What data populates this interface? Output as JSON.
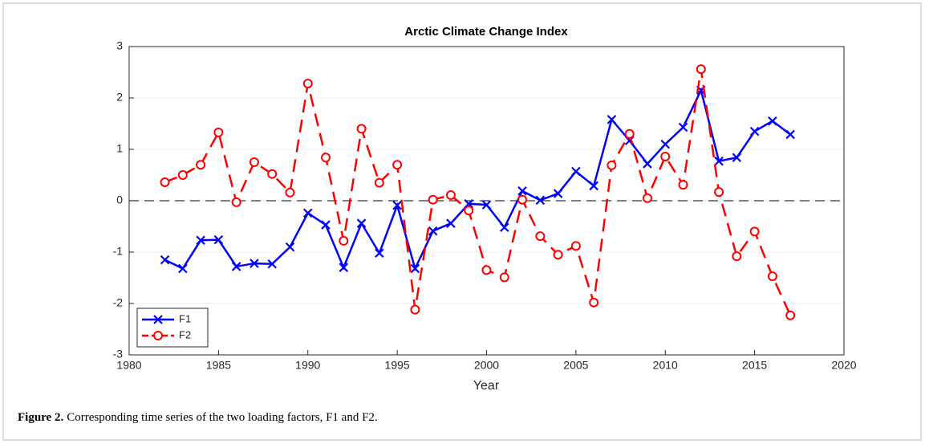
{
  "chart_data": {
    "type": "line",
    "title": "Arctic Climate Change Index",
    "x_label": "Year",
    "x": [
      1982,
      1983,
      1984,
      1985,
      1986,
      1987,
      1988,
      1989,
      1990,
      1991,
      1992,
      1993,
      1994,
      1995,
      1996,
      1997,
      1998,
      1999,
      2000,
      2001,
      2002,
      2003,
      2004,
      2005,
      2006,
      2007,
      2008,
      2009,
      2010,
      2011,
      2012,
      2013,
      2014,
      2015,
      2016,
      2017
    ],
    "series": [
      {
        "name": "F1",
        "color": "#0000ff",
        "linestyle": "solid",
        "marker": "x",
        "values": [
          -1.15,
          -1.32,
          -0.77,
          -0.76,
          -1.28,
          -1.22,
          -1.23,
          -0.9,
          -0.24,
          -0.47,
          -1.3,
          -0.44,
          -1.02,
          -0.09,
          -1.32,
          -0.59,
          -0.44,
          -0.06,
          -0.08,
          -0.52,
          0.19,
          0.01,
          0.14,
          0.57,
          0.29,
          1.58,
          1.17,
          0.72,
          1.1,
          1.43,
          2.15,
          0.77,
          0.84,
          1.35,
          1.55,
          1.29
        ]
      },
      {
        "name": "F2",
        "color": "#ff0000",
        "linestyle": "dashed",
        "marker": "circle",
        "values": [
          0.36,
          0.5,
          0.7,
          1.33,
          -0.03,
          0.75,
          0.52,
          0.16,
          2.28,
          0.84,
          -0.78,
          1.4,
          0.35,
          0.7,
          -2.12,
          0.02,
          0.11,
          -0.19,
          -1.35,
          -1.49,
          0.02,
          -0.69,
          -1.05,
          -0.88,
          -1.98,
          0.69,
          1.3,
          0.05,
          0.86,
          0.31,
          2.56,
          0.17,
          -1.08,
          -0.6,
          -1.47,
          -2.23
        ]
      }
    ],
    "xlim": [
      1980,
      2020
    ],
    "xticks": [
      1980,
      1985,
      1990,
      1995,
      2000,
      2005,
      2010,
      2015,
      2020
    ],
    "ylim": [
      -3,
      3
    ],
    "yticks": [
      -3,
      -2,
      -1,
      0,
      1,
      2,
      3
    ],
    "grid": true,
    "reference_line": 0,
    "legend": "southwest"
  },
  "caption": {
    "label": "Figure 2.",
    "text": "Corresponding time series of the two loading factors, F1 and F2."
  }
}
